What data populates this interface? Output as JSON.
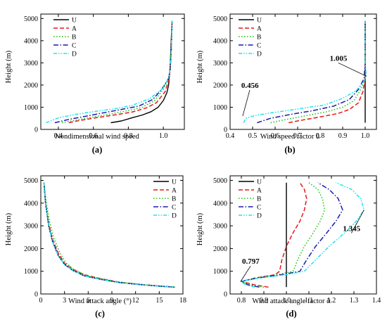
{
  "series_styles": {
    "U": {
      "color": "#000000",
      "dash": ""
    },
    "A": {
      "color": "#e8161b",
      "dash": "6,3"
    },
    "B": {
      "color": "#22c81c",
      "dash": "1.6,2.4"
    },
    "C": {
      "color": "#1a1aa8",
      "dash": "7,2.5,1.6,2.5"
    },
    "D": {
      "color": "#1fe4ec",
      "dash": "5,2,1.6,2,1.6,2"
    }
  },
  "chart_data": [
    {
      "type": "line",
      "panel_label": "(a)",
      "xlabel": "Nondimensional wind speed",
      "ylabel": "Height (m)",
      "xlim": [
        0.3,
        1.12
      ],
      "ylim": [
        0,
        5200
      ],
      "xticks": [
        "0.4",
        "0.6",
        "0.8",
        "1.0"
      ],
      "yticks": [
        "0",
        "1000",
        "2000",
        "3000",
        "4000",
        "5000"
      ],
      "legend": [
        "U",
        "A",
        "B",
        "C",
        "D"
      ],
      "legend_position": "top-left",
      "series": [
        {
          "name": "U",
          "x": [
            0.7,
            0.76,
            0.82,
            0.88,
            0.93,
            0.97,
            1.0,
            1.02,
            1.03,
            1.035,
            1.04,
            1.045,
            1.05
          ],
          "y": [
            300,
            380,
            520,
            650,
            800,
            1000,
            1300,
            1650,
            2000,
            2500,
            3000,
            4000,
            4900
          ]
        },
        {
          "name": "A",
          "x": [
            0.46,
            0.52,
            0.62,
            0.72,
            0.82,
            0.9,
            0.96,
            1.01,
            1.03,
            1.04,
            1.045,
            1.05
          ],
          "y": [
            300,
            400,
            530,
            650,
            780,
            960,
            1200,
            1700,
            2200,
            2700,
            3500,
            4900
          ]
        },
        {
          "name": "B",
          "x": [
            0.42,
            0.5,
            0.6,
            0.7,
            0.8,
            0.88,
            0.95,
            1.0,
            1.03,
            1.04,
            1.045,
            1.05
          ],
          "y": [
            300,
            420,
            560,
            700,
            850,
            1000,
            1300,
            1800,
            2300,
            2800,
            3500,
            4900
          ]
        },
        {
          "name": "C",
          "x": [
            0.38,
            0.46,
            0.56,
            0.66,
            0.76,
            0.86,
            0.94,
            0.99,
            1.03,
            1.04,
            1.045,
            1.05
          ],
          "y": [
            300,
            450,
            600,
            750,
            900,
            1050,
            1350,
            1800,
            2300,
            2800,
            3500,
            4900
          ]
        },
        {
          "name": "D",
          "x": [
            0.33,
            0.4,
            0.5,
            0.6,
            0.72,
            0.82,
            0.92,
            0.99,
            1.03,
            1.04,
            1.045,
            1.05
          ],
          "y": [
            300,
            520,
            680,
            800,
            930,
            1080,
            1380,
            1800,
            2300,
            2800,
            3500,
            4900
          ]
        }
      ]
    },
    {
      "type": "line",
      "panel_label": "(b)",
      "xlabel": "Wind speed factor ū",
      "ylabel": "Height (m)",
      "xlim": [
        0.4,
        1.05
      ],
      "ylim": [
        0,
        5200
      ],
      "xticks": [
        "0.4",
        "0.5",
        "0.6",
        "0.7",
        "0.8",
        "0.9",
        "1.0"
      ],
      "yticks": [
        "0",
        "1000",
        "2000",
        "3000",
        "4000",
        "5000"
      ],
      "legend": [
        "U",
        "A",
        "B",
        "C",
        "D"
      ],
      "legend_position": "top-left",
      "annotations": [
        "0.456",
        "1.005"
      ],
      "series": [
        {
          "name": "U",
          "x": [
            1.0,
            1.0
          ],
          "y": [
            300,
            4900
          ]
        },
        {
          "name": "A",
          "x": [
            0.66,
            0.72,
            0.8,
            0.88,
            0.93,
            0.97,
            0.99,
            1.0,
            1.0
          ],
          "y": [
            300,
            420,
            560,
            720,
            900,
            1200,
            1700,
            2300,
            4900
          ]
        },
        {
          "name": "B",
          "x": [
            0.58,
            0.65,
            0.74,
            0.83,
            0.9,
            0.95,
            0.98,
            1.0,
            1.0
          ],
          "y": [
            300,
            450,
            620,
            800,
            1000,
            1300,
            1800,
            2300,
            4900
          ]
        },
        {
          "name": "C",
          "x": [
            0.52,
            0.58,
            0.67,
            0.77,
            0.86,
            0.93,
            0.97,
            0.995,
            1.0,
            1.0
          ],
          "y": [
            300,
            500,
            680,
            850,
            1050,
            1350,
            1800,
            2300,
            3000,
            4900
          ]
        },
        {
          "name": "D",
          "x": [
            0.46,
            0.47,
            0.52,
            0.62,
            0.72,
            0.82,
            0.9,
            0.96,
            0.99,
            1.005,
            1.0,
            1.0
          ],
          "y": [
            300,
            500,
            650,
            800,
            950,
            1100,
            1400,
            1750,
            2100,
            2400,
            3000,
            4900
          ]
        }
      ]
    },
    {
      "type": "line",
      "panel_label": "(c)",
      "xlabel": "Wind attack angle (°)",
      "ylabel": "Height (m)",
      "xlim": [
        0,
        18
      ],
      "ylim": [
        0,
        5200
      ],
      "xticks": [
        "0",
        "3",
        "6",
        "9",
        "12",
        "15",
        "18"
      ],
      "yticks": [
        "0",
        "1000",
        "2000",
        "3000",
        "4000",
        "5000"
      ],
      "legend": [
        "U",
        "A",
        "B",
        "C",
        "D"
      ],
      "legend_position": "top-right",
      "series": [
        {
          "name": "U",
          "x": [
            0.4,
            0.6,
            1.0,
            1.5,
            2.2,
            3.0,
            4.0,
            5.5,
            7.5,
            10.0,
            13.0,
            15.5,
            17.0
          ],
          "y": [
            4900,
            4000,
            3000,
            2300,
            1700,
            1300,
            1050,
            800,
            650,
            500,
            400,
            330,
            300
          ]
        },
        {
          "name": "A",
          "x": [
            0.4,
            0.6,
            1.0,
            1.5,
            2.2,
            3.0,
            4.0,
            5.5,
            7.5,
            10.0,
            13.0,
            15.5,
            17.0
          ],
          "y": [
            4900,
            4000,
            3100,
            2400,
            1800,
            1350,
            1100,
            850,
            680,
            520,
            410,
            340,
            300
          ]
        },
        {
          "name": "B",
          "x": [
            0.4,
            0.7,
            1.1,
            1.6,
            2.3,
            3.1,
            4.1,
            5.5,
            7.5,
            10.0,
            13.0,
            15.5,
            17.0
          ],
          "y": [
            4900,
            4000,
            3200,
            2500,
            1900,
            1400,
            1100,
            850,
            680,
            520,
            410,
            340,
            300
          ]
        },
        {
          "name": "C",
          "x": [
            0.4,
            0.6,
            1.0,
            1.5,
            2.2,
            3.0,
            4.0,
            5.5,
            7.5,
            10.0,
            13.0,
            15.5,
            17.0
          ],
          "y": [
            4900,
            4000,
            3000,
            2300,
            1700,
            1300,
            1050,
            800,
            650,
            500,
            400,
            330,
            300
          ]
        },
        {
          "name": "D",
          "x": [
            0.4,
            0.6,
            1.0,
            1.5,
            2.2,
            3.0,
            4.0,
            5.5,
            7.5,
            10.0,
            13.0,
            15.5,
            17.0
          ],
          "y": [
            4900,
            4000,
            3000,
            2300,
            1700,
            1300,
            1050,
            800,
            650,
            500,
            400,
            330,
            300
          ]
        }
      ]
    },
    {
      "type": "line",
      "panel_label": "(d)",
      "xlabel": "Wind attack angle factor ᾱ",
      "ylabel": "Height (m)",
      "xlim": [
        0.75,
        1.4
      ],
      "ylim": [
        0,
        5200
      ],
      "xticks": [
        "0.8",
        "0.9",
        "1.0",
        "1.1",
        "1.2",
        "1.3",
        "1.4"
      ],
      "yticks": [
        "0",
        "1000",
        "2000",
        "3000",
        "4000",
        "5000"
      ],
      "legend": [
        "U",
        "A",
        "B",
        "C",
        "D"
      ],
      "legend_position": "top-left",
      "annotations": [
        "0.797",
        "1.345"
      ],
      "series": [
        {
          "name": "U",
          "x": [
            1.0,
            1.0
          ],
          "y": [
            300,
            4900
          ]
        },
        {
          "name": "A",
          "x": [
            0.92,
            0.86,
            0.8,
            0.86,
            0.95,
            0.97,
            0.98,
            1.0,
            1.03,
            1.06,
            1.08,
            1.09,
            1.08,
            1.06
          ],
          "y": [
            300,
            400,
            550,
            700,
            850,
            1000,
            1500,
            2100,
            2700,
            3200,
            3700,
            4200,
            4600,
            4900
          ]
        },
        {
          "name": "B",
          "x": [
            0.9,
            0.84,
            0.8,
            0.86,
            0.96,
            1.03,
            1.05,
            1.08,
            1.12,
            1.15,
            1.17,
            1.16,
            1.14,
            1.1
          ],
          "y": [
            300,
            400,
            550,
            700,
            850,
            1000,
            1500,
            2100,
            2700,
            3200,
            3700,
            4200,
            4600,
            4900
          ]
        },
        {
          "name": "C",
          "x": [
            0.88,
            0.83,
            0.8,
            0.87,
            0.98,
            1.06,
            1.09,
            1.13,
            1.18,
            1.22,
            1.25,
            1.23,
            1.19,
            1.14
          ],
          "y": [
            300,
            400,
            550,
            700,
            850,
            1000,
            1500,
            2100,
            2700,
            3200,
            3700,
            4200,
            4600,
            4900
          ]
        },
        {
          "name": "D",
          "x": [
            0.86,
            0.82,
            0.797,
            0.88,
            1.0,
            1.08,
            1.13,
            1.19,
            1.26,
            1.31,
            1.345,
            1.33,
            1.29,
            1.22
          ],
          "y": [
            300,
            400,
            550,
            700,
            850,
            1000,
            1500,
            2100,
            2700,
            3200,
            3700,
            4200,
            4600,
            4900
          ]
        }
      ]
    }
  ]
}
